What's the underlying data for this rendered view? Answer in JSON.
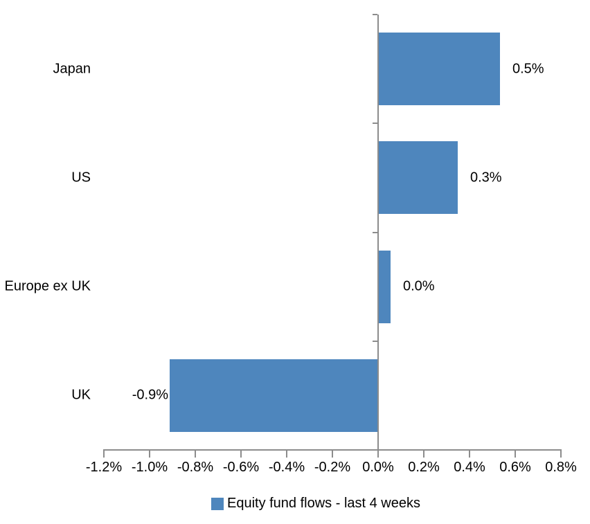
{
  "chart_data": {
    "type": "bar",
    "orientation": "horizontal",
    "title": "",
    "categories": [
      "Japan",
      "US",
      "Europe ex UK",
      "UK"
    ],
    "values": [
      0.5,
      0.3,
      0.0,
      -0.9
    ],
    "values_precise_pct": [
      0.53,
      0.345,
      0.05,
      -0.91
    ],
    "value_labels": [
      "0.5%",
      "0.3%",
      "0.0%",
      "-0.9%"
    ],
    "series": [
      {
        "name": "Equity fund flows - last 4 weeks",
        "values": [
          0.5,
          0.3,
          0.0,
          -0.9
        ]
      }
    ],
    "legend": {
      "label": "Equity fund flows - last 4 weeks",
      "position": "bottom"
    },
    "xlabel": "",
    "ylabel": "",
    "xlim": [
      -1.2,
      0.8
    ],
    "x_tick_step": 0.2,
    "x_ticks": [
      -1.2,
      -1.0,
      -0.8,
      -0.6,
      -0.4,
      -0.2,
      0.0,
      0.2,
      0.4,
      0.6,
      0.8
    ],
    "x_tick_labels": [
      "-1.2%",
      "-1.0%",
      "-0.8%",
      "-0.6%",
      "-0.4%",
      "-0.2%",
      "0.0%",
      "0.2%",
      "0.4%",
      "0.6%",
      "0.8%"
    ],
    "grid": false,
    "unit": "%",
    "colors": {
      "bar": "#4E86BD",
      "axis": "#8C8C8C",
      "text": "#000000",
      "background": "#FFFFFF"
    }
  }
}
